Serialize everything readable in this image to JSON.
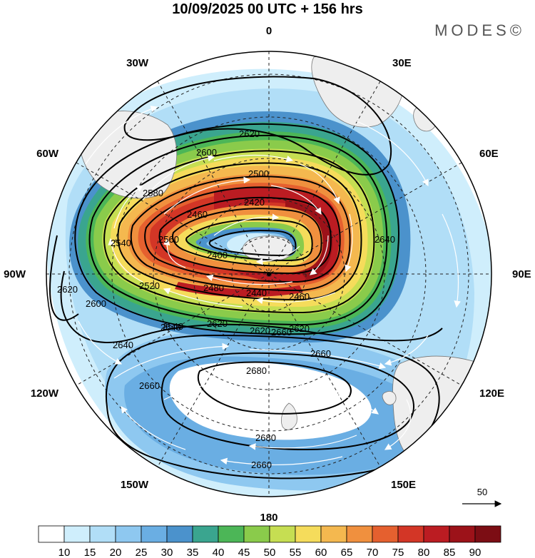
{
  "header": {
    "title": "10/09/2025  00 UTC  + 156 hrs",
    "brand": "MODES©"
  },
  "map": {
    "projection": "south polar stereographic",
    "longitude_labels": [
      "0",
      "30E",
      "60E",
      "90E",
      "120E",
      "150E",
      "180",
      "150W",
      "120W",
      "90W",
      "60W",
      "30W"
    ],
    "contour_labels": [
      "2620",
      "2600",
      "2580",
      "2560",
      "2540",
      "2500",
      "2460",
      "2420",
      "2400",
      "2520",
      "2480",
      "2440",
      "2460",
      "2640",
      "2620",
      "2620",
      "2640",
      "2660",
      "2680",
      "2660",
      "2640",
      "2620",
      "2600",
      "2540",
      "2620",
      "2660",
      "2680",
      "2660"
    ],
    "wind_reference": {
      "value": "50"
    }
  },
  "colorbar": {
    "labels": [
      "10",
      "15",
      "20",
      "25",
      "30",
      "35",
      "40",
      "45",
      "50",
      "55",
      "60",
      "65",
      "70",
      "75",
      "80",
      "85",
      "90"
    ],
    "colors": [
      "#ffffff",
      "#cfeefc",
      "#b1def7",
      "#8ec8f0",
      "#6aaee3",
      "#4b92cc",
      "#3aa58f",
      "#4cb657",
      "#8acb4b",
      "#c6de52",
      "#f5dc5b",
      "#f4b84f",
      "#f0903e",
      "#e5602f",
      "#d33626",
      "#bb1c22",
      "#9c1219",
      "#7c0d14"
    ]
  }
}
